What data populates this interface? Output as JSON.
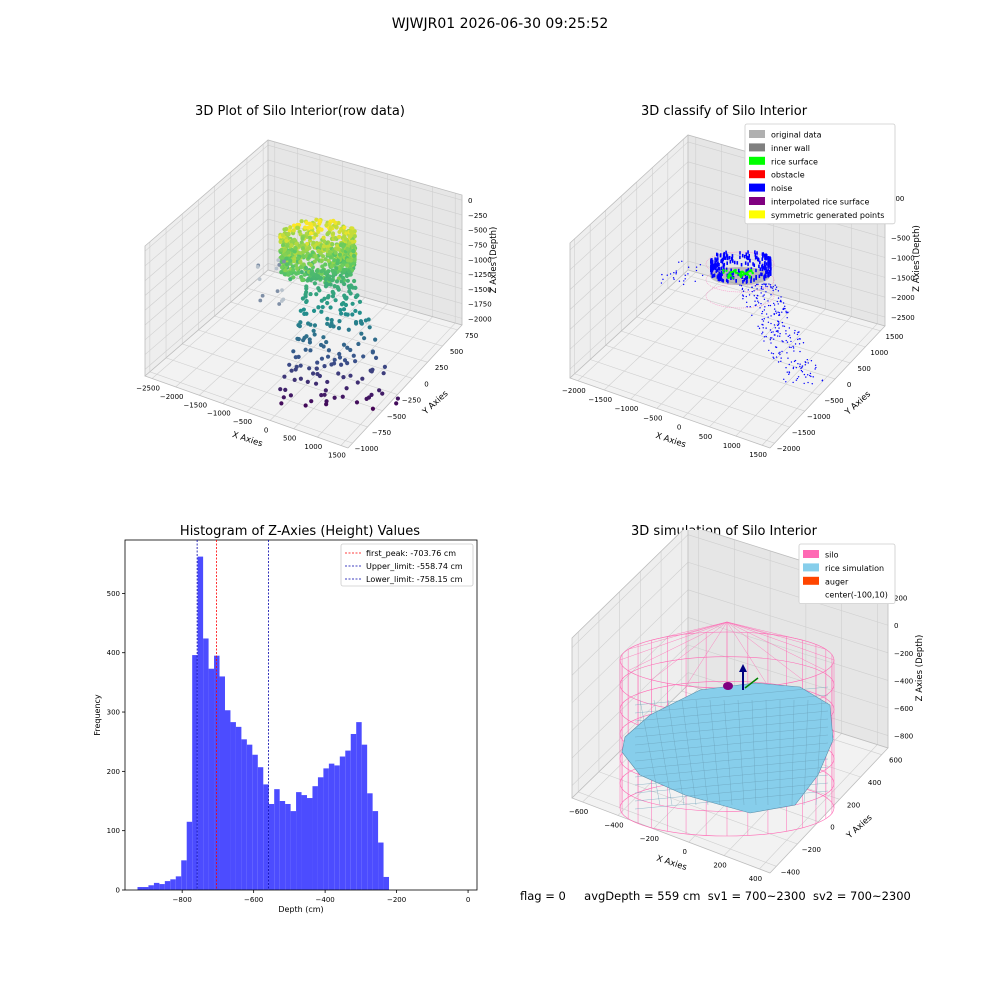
{
  "figure": {
    "suptitle": "WJWJR01 2026-06-30 09:25:52",
    "footer": {
      "flag": "flag = 0",
      "avg_depth": "avgDepth = 559 cm",
      "sv1": "sv1 = 700~2300",
      "sv2": "sv2 = 700~2300"
    }
  },
  "colors": {
    "original": "#b0b0b0",
    "wall": "#808080",
    "surface": "#00ff00",
    "obstacle": "#ff0000",
    "noise": "#0000ff",
    "interp": "#800080",
    "symmetric": "#ffff00",
    "silo": "#ff69b4",
    "rice": "#87ceeb",
    "auger": "#ff4500",
    "hist_bar": "#4c4cff",
    "peak": "#ff0000",
    "limit": "#0000aa"
  },
  "chart_data": [
    {
      "type": "scatter",
      "title": "3D Plot of Silo Interior(row data)",
      "projection": "3d",
      "xlabel": "X Axies",
      "ylabel": "Y Axies",
      "zlabel": "Z Axies (Depth)",
      "xticks": [
        "−2500",
        "−2000",
        "−1500",
        "−1000",
        "−500",
        "0",
        "500",
        "1000",
        "1500"
      ],
      "yticks": [
        "−1000",
        "−750",
        "−500",
        "−250",
        "0",
        "250",
        "500",
        "750"
      ],
      "zticks": [
        "0",
        "−250",
        "−500",
        "−750",
        "−1000",
        "−1250",
        "−1500",
        "−1750",
        "−2000"
      ],
      "xlim": [
        -2500,
        1500
      ],
      "ylim": [
        -1000,
        750
      ],
      "zlim": [
        -2000,
        0
      ],
      "colormap": "viridis by depth",
      "grid": true
    },
    {
      "type": "scatter",
      "title": "3D classify of Silo Interior",
      "projection": "3d",
      "xlabel": "X Axies",
      "ylabel": "Y Axies",
      "zlabel": "Z Axies (Depth)",
      "xticks": [
        "−2000",
        "−1500",
        "−1000",
        "−500",
        "0",
        "500",
        "1000",
        "1500"
      ],
      "yticks": [
        "−2000",
        "−1500",
        "−1000",
        "−500",
        "0",
        "500",
        "1000",
        "1500"
      ],
      "zticks": [
        "500",
        "0",
        "−500",
        "−1000",
        "−1500",
        "−2000",
        "−2500"
      ],
      "xlim": [
        -2000,
        1500
      ],
      "ylim": [
        -2000,
        1500
      ],
      "zlim": [
        -2500,
        500
      ],
      "legend_position": "top-right",
      "legend": [
        {
          "label": "original data",
          "color": "#b0b0b0"
        },
        {
          "label": "inner wall",
          "color": "#808080"
        },
        {
          "label": "rice surface",
          "color": "#00ff00"
        },
        {
          "label": "obstacle",
          "color": "#ff0000"
        },
        {
          "label": "noise",
          "color": "#0000ff"
        },
        {
          "label": "interpolated rice surface",
          "color": "#800080"
        },
        {
          "label": "symmetric generated points",
          "color": "#ffff00"
        }
      ],
      "grid": true
    },
    {
      "type": "bar",
      "title": "Histogram of Z-Axies (Height) Values",
      "xlabel": "Depth (cm)",
      "ylabel": "Frequency",
      "xlim": [
        -960,
        25
      ],
      "ylim": [
        0,
        590
      ],
      "xticks": [
        -800,
        -600,
        -400,
        -200,
        0
      ],
      "xtick_labels": [
        "−800",
        "−600",
        "−400",
        "−200",
        "0"
      ],
      "yticks": [
        0,
        100,
        200,
        300,
        400,
        500
      ],
      "bin_start": -925,
      "bin_width": 15.3,
      "counts": [
        5,
        5,
        8,
        12,
        10,
        15,
        18,
        23,
        50,
        115,
        396,
        562,
        424,
        373,
        395,
        360,
        303,
        283,
        275,
        254,
        245,
        228,
        207,
        178,
        145,
        170,
        150,
        145,
        133,
        165,
        160,
        155,
        175,
        190,
        205,
        213,
        210,
        225,
        235,
        263,
        283,
        245,
        163,
        133,
        80,
        22
      ],
      "legend_position": "top-right",
      "vlines": [
        {
          "label": "first_peak: -703.76 cm",
          "x": -703.76,
          "color": "#ff0000"
        },
        {
          "label": "Upper_limit: -558.74 cm",
          "x": -558.74,
          "color": "#0000aa"
        },
        {
          "label": "Lower_limit: -758.15 cm",
          "x": -758.15,
          "color": "#0000aa"
        }
      ]
    },
    {
      "type": "area",
      "title": "3D simulation of Silo Interior",
      "projection": "3d",
      "xlabel": "X Axies",
      "ylabel": "Y Axies",
      "zlabel": "Z Axies (Depth)",
      "xticks": [
        "−600",
        "−400",
        "−200",
        "0",
        "200",
        "400"
      ],
      "yticks": [
        "−400",
        "−200",
        "0",
        "200",
        "400",
        "600"
      ],
      "zticks": [
        "200",
        "0",
        "−200",
        "−400",
        "−600",
        "−800"
      ],
      "xlim": [
        -700,
        450
      ],
      "ylim": [
        -500,
        600
      ],
      "zlim": [
        -850,
        300
      ],
      "legend_position": "top-right",
      "legend": [
        {
          "label": "silo",
          "color": "#ff69b4"
        },
        {
          "label": "rice simulation",
          "color": "#87ceeb"
        },
        {
          "label": "auger",
          "color": "#ff4500"
        },
        {
          "label": "center(-100,10)",
          "color": ""
        }
      ],
      "grid": true
    }
  ]
}
